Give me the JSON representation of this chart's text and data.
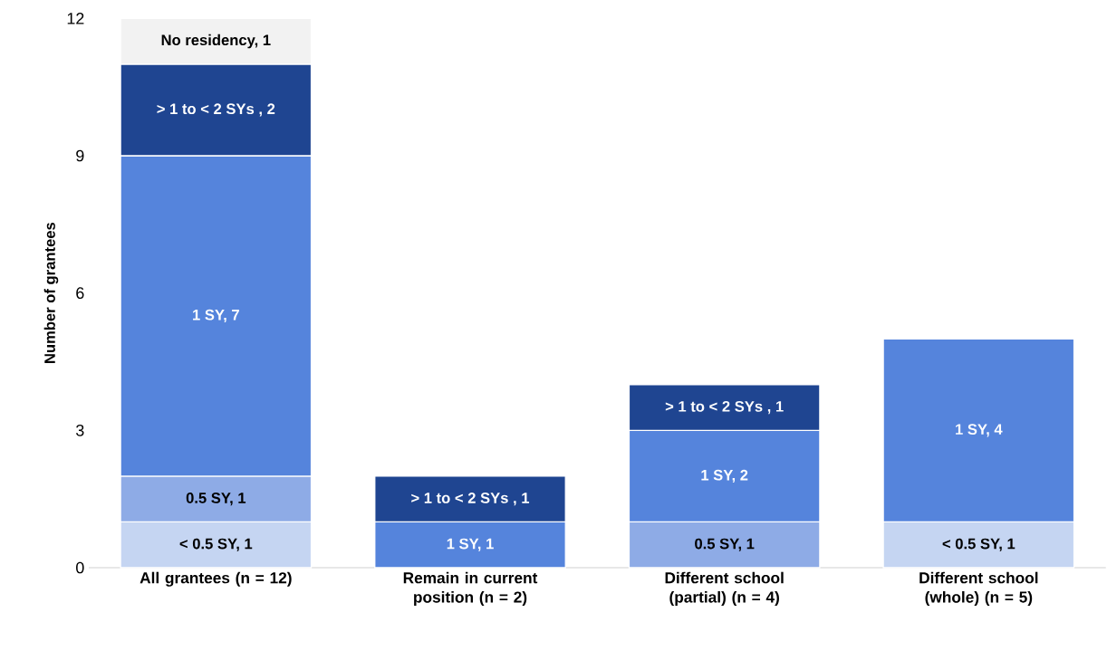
{
  "chart_data": {
    "type": "bar",
    "stacked": true,
    "ylabel": "Number of grantees",
    "categories": [
      "All grantees (n = 12)",
      "Remain in current position (n = 2)",
      "Different school (partial) (n = 4)",
      "Different school (whole) (n = 5)"
    ],
    "ylim": [
      0,
      12
    ],
    "yticks": [
      0,
      3,
      6,
      9,
      12
    ],
    "series": [
      {
        "color": "#c5d5f2",
        "values": [
          1,
          null,
          null,
          1
        ],
        "value_labels": [
          "< 0.5 SY, 1",
          null,
          null,
          "< 0.5 SY, 1"
        ]
      },
      {
        "color": "#8eabe6",
        "values": [
          1,
          null,
          1,
          null
        ],
        "value_labels": [
          "0.5 SY, 1",
          null,
          "0.5 SY, 1",
          null
        ]
      },
      {
        "color": "#5584dc",
        "values": [
          7,
          1,
          2,
          4
        ],
        "value_labels": [
          "1 SY, 7",
          "1 SY, 1",
          "1 SY, 2",
          "1 SY, 4"
        ]
      },
      {
        "color": "#1f4591",
        "values": [
          2,
          1,
          1,
          null
        ],
        "value_labels": [
          "> 1 to < 2 SYs , 2",
          "> 1 to < 2 SYs , 1",
          "> 1 to < 2 SYs , 1",
          null
        ]
      },
      {
        "color": "#f2f2f2",
        "values": [
          1,
          null,
          null,
          null
        ],
        "value_labels": [
          "No residency, 1",
          null,
          null,
          null
        ]
      }
    ]
  }
}
